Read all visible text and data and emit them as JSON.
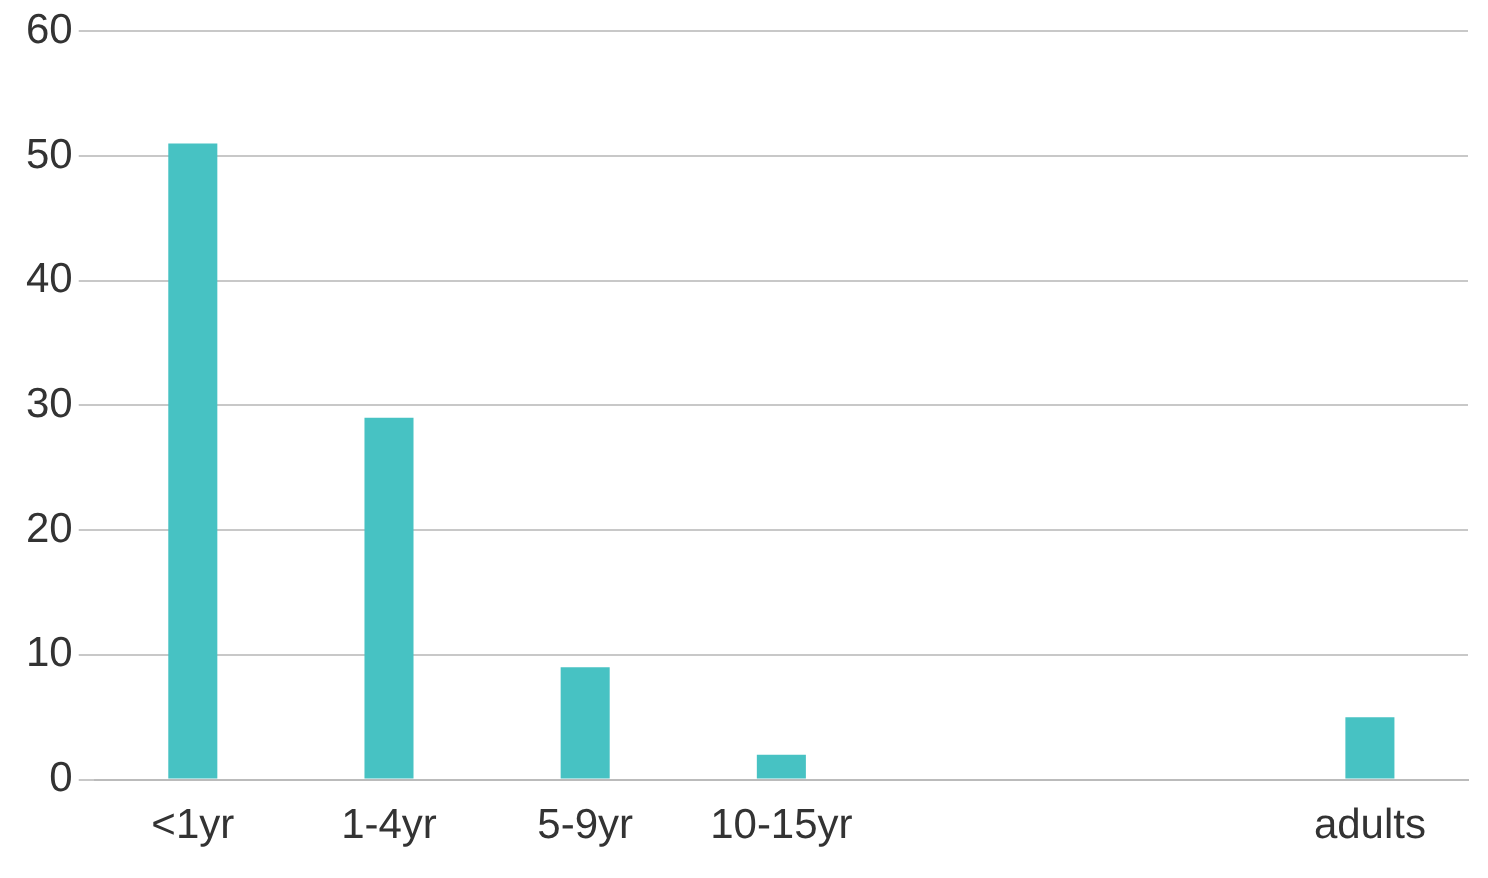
{
  "chart_data": {
    "type": "bar",
    "categories": [
      "<1yr",
      "1-4yr",
      "5-9yr",
      "10-15yr",
      null,
      null,
      "adults"
    ],
    "values": [
      51,
      29,
      9,
      2,
      null,
      null,
      5
    ],
    "color": "#47c2c3",
    "ylim": [
      0,
      60
    ],
    "yticks": [
      0,
      10,
      20,
      30,
      40,
      50,
      60
    ],
    "grid": "y",
    "legend": false
  }
}
